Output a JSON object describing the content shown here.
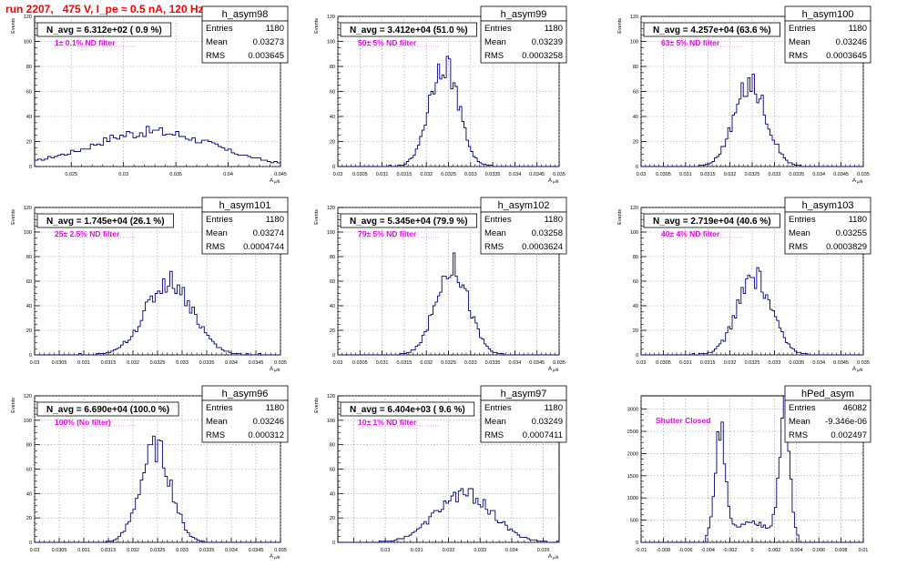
{
  "page": {
    "title": "run 2207,   475 V, I_pe ≈ 0.5 nA, 120 Hz"
  },
  "chart_data": [
    {
      "type": "bar",
      "name": "h_asym98",
      "title": "N_avg = 6.312e+02 ( 0.9 %)",
      "annotation": "1± 0.1% ND filter",
      "ylabel": "Events",
      "xlabel": "A",
      "xlabel_sub": "μ/θ",
      "stats": {
        "entries": "1180",
        "mean": "0.03273",
        "rms": "0.003645"
      },
      "xlim": [
        0.0215,
        0.045
      ],
      "ylim": [
        0,
        120
      ],
      "xticks": [
        0.025,
        0.03,
        0.035,
        0.04,
        0.045
      ],
      "xtick_labels": [
        "0.025",
        "0.03",
        "0.035",
        "0.04",
        "0.045"
      ],
      "yticks": [
        0,
        20,
        40,
        60,
        80,
        100,
        120
      ],
      "hist": {
        "mean": 0.03273,
        "rms": 0.003645,
        "peak": 32,
        "bins": 75,
        "shape": "flat"
      }
    },
    {
      "type": "bar",
      "name": "h_asym99",
      "title": "N_avg = 3.412e+04 (51.0 %)",
      "annotation": "50± 5% ND filter",
      "ylabel": "Events",
      "xlabel": "A",
      "xlabel_sub": "μ/θ",
      "stats": {
        "entries": "1180",
        "mean": "0.03239",
        "rms": "0.0003258"
      },
      "xlim": [
        0.03,
        0.035
      ],
      "ylim": [
        0,
        120
      ],
      "xticks": [
        0.03,
        0.0305,
        0.031,
        0.0315,
        0.032,
        0.0325,
        0.033,
        0.0335,
        0.034,
        0.0345,
        0.035
      ],
      "xtick_labels": [
        "0.03",
        "0.0305",
        "0.031",
        "0.0315",
        "0.032",
        "0.0325",
        "0.033",
        "0.0335",
        "0.034",
        "0.0345",
        "0.035"
      ],
      "yticks": [
        0,
        20,
        40,
        60,
        80,
        100,
        120
      ],
      "hist": {
        "mean": 0.03239,
        "rms": 0.0003258,
        "peak": 87,
        "bins": 100,
        "shape": "gauss"
      }
    },
    {
      "type": "bar",
      "name": "h_asym100",
      "title": "N_avg = 4.257e+04 (63.6 %)",
      "annotation": "63± 5% ND filter",
      "ylabel": "Events",
      "xlabel": "A",
      "xlabel_sub": "μ/θ",
      "stats": {
        "entries": "1180",
        "mean": "0.03246",
        "rms": "0.0003645"
      },
      "xlim": [
        0.03,
        0.035
      ],
      "ylim": [
        0,
        120
      ],
      "xticks": [
        0.03,
        0.0305,
        0.031,
        0.0315,
        0.032,
        0.0325,
        0.033,
        0.0335,
        0.034,
        0.0345,
        0.035
      ],
      "xtick_labels": [
        "0.03",
        "0.0305",
        "0.031",
        "0.0315",
        "0.032",
        "0.0325",
        "0.033",
        "0.0335",
        "0.034",
        "0.0345",
        "0.035"
      ],
      "yticks": [
        0,
        20,
        40,
        60,
        80,
        100,
        120
      ],
      "hist": {
        "mean": 0.03246,
        "rms": 0.0003645,
        "peak": 68,
        "bins": 100,
        "shape": "gauss"
      }
    },
    {
      "type": "bar",
      "name": "h_asym101",
      "title": "N_avg = 1.745e+04 (26.1 %)",
      "annotation": "25± 2.5% ND filter",
      "ylabel": "Events",
      "xlabel": "A",
      "xlabel_sub": "μ/θ",
      "stats": {
        "entries": "1180",
        "mean": "0.03274",
        "rms": "0.0004744"
      },
      "xlim": [
        0.03,
        0.035
      ],
      "ylim": [
        0,
        120
      ],
      "xticks": [
        0.03,
        0.0305,
        0.031,
        0.0315,
        0.032,
        0.0325,
        0.033,
        0.0335,
        0.034,
        0.0345,
        0.035
      ],
      "xtick_labels": [
        "0.03",
        "0.0305",
        "0.031",
        "0.0315",
        "0.032",
        "0.0325",
        "0.033",
        "0.0335",
        "0.034",
        "0.0345",
        "0.035"
      ],
      "yticks": [
        0,
        20,
        40,
        60,
        80,
        100,
        120
      ],
      "hist": {
        "mean": 0.03274,
        "rms": 0.0004744,
        "peak": 62,
        "bins": 100,
        "shape": "gauss"
      }
    },
    {
      "type": "bar",
      "name": "h_asym102",
      "title": "N_avg = 5.345e+04 (79.9 %)",
      "annotation": "79± 5% ND filter",
      "ylabel": "Events",
      "xlabel": "A",
      "xlabel_sub": "μ/θ",
      "stats": {
        "entries": "1180",
        "mean": "0.03258",
        "rms": "0.0003624"
      },
      "xlim": [
        0.03,
        0.035
      ],
      "ylim": [
        0,
        120
      ],
      "xticks": [
        0.03,
        0.0305,
        0.031,
        0.0315,
        0.032,
        0.0325,
        0.033,
        0.0335,
        0.034,
        0.0345,
        0.035
      ],
      "xtick_labels": [
        "0.03",
        "0.0305",
        "0.031",
        "0.0315",
        "0.032",
        "0.0325",
        "0.033",
        "0.0335",
        "0.034",
        "0.0345",
        "0.035"
      ],
      "yticks": [
        0,
        20,
        40,
        60,
        80,
        100,
        120
      ],
      "hist": {
        "mean": 0.03258,
        "rms": 0.0003624,
        "peak": 76,
        "bins": 100,
        "shape": "gauss"
      }
    },
    {
      "type": "bar",
      "name": "h_asym103",
      "title": "N_avg = 2.719e+04 (40.6 %)",
      "annotation": "40± 4% ND filter",
      "ylabel": "Events",
      "xlabel": "A",
      "xlabel_sub": "μ/θ",
      "stats": {
        "entries": "1180",
        "mean": "0.03255",
        "rms": "0.0003829"
      },
      "xlim": [
        0.03,
        0.035
      ],
      "ylim": [
        0,
        120
      ],
      "xticks": [
        0.03,
        0.0305,
        0.031,
        0.0315,
        0.032,
        0.0325,
        0.033,
        0.0335,
        0.034,
        0.0345,
        0.035
      ],
      "xtick_labels": [
        "0.03",
        "0.0305",
        "0.031",
        "0.0315",
        "0.032",
        "0.0325",
        "0.033",
        "0.0335",
        "0.034",
        "0.0345",
        "0.035"
      ],
      "yticks": [
        0,
        20,
        40,
        60,
        80,
        100,
        120
      ],
      "hist": {
        "mean": 0.03255,
        "rms": 0.0003829,
        "peak": 65,
        "bins": 100,
        "shape": "gauss"
      }
    },
    {
      "type": "bar",
      "name": "h_asym96",
      "title": "N_avg = 6.690e+04 (100.0 %)",
      "annotation": "100% (No filter)",
      "ylabel": "Events",
      "xlabel": "A",
      "xlabel_sub": "μ/θ",
      "stats": {
        "entries": "1180",
        "mean": "0.03246",
        "rms": "0.000312"
      },
      "xlim": [
        0.03,
        0.035
      ],
      "ylim": [
        0,
        120
      ],
      "xticks": [
        0.03,
        0.0305,
        0.031,
        0.0315,
        0.032,
        0.0325,
        0.033,
        0.0335,
        0.034,
        0.0345,
        0.035
      ],
      "xtick_labels": [
        "0.03",
        "0.0305",
        "0.031",
        "0.0315",
        "0.032",
        "0.0325",
        "0.033",
        "0.0335",
        "0.034",
        "0.0345",
        "0.035"
      ],
      "yticks": [
        0,
        20,
        40,
        60,
        80,
        100,
        120
      ],
      "hist": {
        "mean": 0.03246,
        "rms": 0.000312,
        "peak": 80,
        "bins": 100,
        "shape": "gauss"
      }
    },
    {
      "type": "bar",
      "name": "h_asym97",
      "title": "N_avg = 6.404e+03 ( 9.6 %)",
      "annotation": "10± 1% ND filter",
      "ylabel": "Events",
      "xlabel": "A",
      "xlabel_sub": "μ/θ",
      "stats": {
        "entries": "1180",
        "mean": "0.03249",
        "rms": "0.0007411"
      },
      "xlim": [
        0.0285,
        0.0355
      ],
      "ylim": [
        0,
        120
      ],
      "xticks": [
        0.029,
        0.03,
        0.031,
        0.032,
        0.033,
        0.034,
        0.035
      ],
      "xtick_labels": [
        "0.03",
        "0.031",
        "0.032",
        "0.033",
        "0.034",
        "0.035"
      ],
      "xtick_label_values": [
        0.03,
        0.031,
        0.032,
        0.033,
        0.034,
        0.035
      ],
      "yticks": [
        0,
        20,
        40,
        60,
        80,
        100,
        120
      ],
      "hist": {
        "mean": 0.03249,
        "rms": 0.0007411,
        "peak": 41,
        "bins": 90,
        "shape": "broad"
      }
    },
    {
      "type": "bar",
      "name": "hPed_asym",
      "title": "",
      "annotation": "Shutter Closed",
      "ylabel": "",
      "xlabel": "",
      "xlabel_sub": "",
      "stats": {
        "entries": "46082",
        "mean": "-9.346e-06",
        "rms": "0.002497"
      },
      "xlim": [
        -0.01,
        0.01
      ],
      "ylim": [
        0,
        3300
      ],
      "xticks": [
        -0.01,
        -0.008,
        -0.006,
        -0.004,
        -0.002,
        0,
        0.002,
        0.004,
        0.006,
        0.008,
        0.01
      ],
      "xtick_labels": [
        "-0.01",
        "-0.008",
        "-0.006",
        "-0.004",
        "-0.002",
        "0",
        "0.002",
        "0.004",
        "0.006",
        "0.008",
        "0.01"
      ],
      "yticks": [
        0,
        500,
        1000,
        1500,
        2000,
        2500,
        3000
      ],
      "hist": {
        "mean": -9.346e-06,
        "rms": 0.002497,
        "peak": 3000,
        "bins": 100,
        "shape": "bimodal"
      }
    }
  ]
}
